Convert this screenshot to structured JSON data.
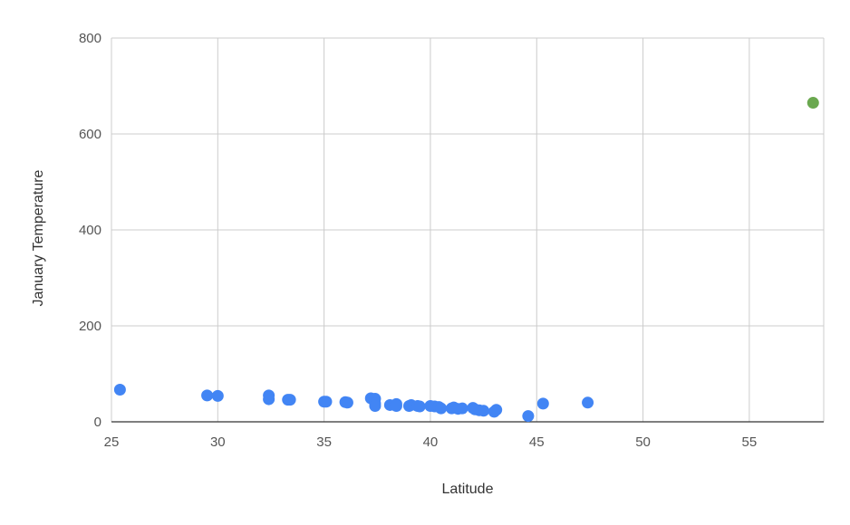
{
  "chart_data": {
    "type": "scatter",
    "title": "",
    "xlabel": "Latitude",
    "ylabel": "January Temperature",
    "xlim": [
      25,
      58.5
    ],
    "ylim": [
      0,
      800
    ],
    "x_ticks": [
      25,
      30,
      35,
      40,
      45,
      50,
      55
    ],
    "y_ticks": [
      0,
      200,
      400,
      600,
      800
    ],
    "grid": true,
    "legend": "none",
    "series": [
      {
        "color": "#4285f4",
        "points": [
          [
            25.4,
            67
          ],
          [
            29.5,
            55
          ],
          [
            30.0,
            54
          ],
          [
            32.4,
            55
          ],
          [
            32.4,
            47
          ],
          [
            33.3,
            46
          ],
          [
            33.4,
            46
          ],
          [
            35.0,
            42
          ],
          [
            35.1,
            42
          ],
          [
            36.0,
            41
          ],
          [
            36.1,
            40
          ],
          [
            37.2,
            49
          ],
          [
            37.4,
            48
          ],
          [
            37.4,
            38
          ],
          [
            37.4,
            33
          ],
          [
            38.1,
            35
          ],
          [
            38.4,
            37
          ],
          [
            38.4,
            33
          ],
          [
            39.0,
            33
          ],
          [
            39.1,
            35
          ],
          [
            39.4,
            33
          ],
          [
            39.5,
            32
          ],
          [
            40.0,
            33
          ],
          [
            40.2,
            32
          ],
          [
            40.4,
            31
          ],
          [
            40.5,
            28
          ],
          [
            41.0,
            28
          ],
          [
            41.1,
            30
          ],
          [
            41.3,
            27
          ],
          [
            41.5,
            28
          ],
          [
            42.0,
            29
          ],
          [
            42.1,
            26
          ],
          [
            42.3,
            24
          ],
          [
            42.5,
            23
          ],
          [
            43.0,
            21
          ],
          [
            43.1,
            25
          ],
          [
            44.6,
            12
          ],
          [
            45.3,
            38
          ],
          [
            47.4,
            40
          ]
        ]
      },
      {
        "color": "#6aa84f",
        "points": [
          [
            58.0,
            665
          ]
        ]
      }
    ]
  }
}
